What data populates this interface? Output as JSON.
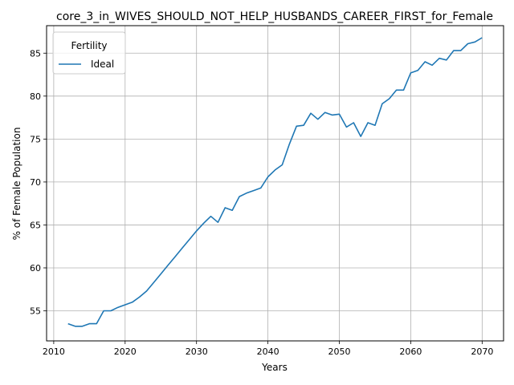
{
  "chart_data": {
    "type": "line",
    "title": "core_3_in_WIVES_SHOULD_NOT_HELP_HUSBANDS_CAREER_FIRST_for_Female",
    "xlabel": "Years",
    "ylabel": "% of Female Population",
    "xlim": [
      2009,
      2073
    ],
    "ylim": [
      51.5,
      88.2
    ],
    "xticks": [
      2010,
      2020,
      2030,
      2040,
      2050,
      2060,
      2070
    ],
    "yticks": [
      55,
      60,
      65,
      70,
      75,
      80,
      85
    ],
    "grid": true,
    "legend": {
      "title": "Fertility",
      "placement": "top-left"
    },
    "series": [
      {
        "name": "Ideal",
        "color": "#1f77b4",
        "x": [
          2012,
          2013,
          2014,
          2015,
          2016,
          2017,
          2018,
          2019,
          2020,
          2021,
          2022,
          2023,
          2024,
          2025,
          2026,
          2027,
          2028,
          2029,
          2030,
          2031,
          2032,
          2033,
          2034,
          2035,
          2036,
          2037,
          2038,
          2039,
          2040,
          2041,
          2042,
          2043,
          2044,
          2045,
          2046,
          2047,
          2048,
          2049,
          2050,
          2051,
          2052,
          2053,
          2054,
          2055,
          2056,
          2057,
          2058,
          2059,
          2060,
          2061,
          2062,
          2063,
          2064,
          2065,
          2066,
          2067,
          2068,
          2069,
          2070
        ],
        "y": [
          53.5,
          53.2,
          53.2,
          53.5,
          53.5,
          55.0,
          55.0,
          55.4,
          55.7,
          56.0,
          56.6,
          57.3,
          58.3,
          59.3,
          60.3,
          61.3,
          62.3,
          63.3,
          64.3,
          65.2,
          66.0,
          65.3,
          67.0,
          66.7,
          68.3,
          68.7,
          69.0,
          69.3,
          70.6,
          71.4,
          72.0,
          74.4,
          76.5,
          76.6,
          78.0,
          77.3,
          78.1,
          77.8,
          77.9,
          76.4,
          76.9,
          75.3,
          76.9,
          76.6,
          79.1,
          79.7,
          80.7,
          80.7,
          82.7,
          83.0,
          84.0,
          83.6,
          84.4,
          84.2,
          85.3,
          85.3,
          86.1,
          86.3,
          86.8
        ]
      }
    ]
  }
}
